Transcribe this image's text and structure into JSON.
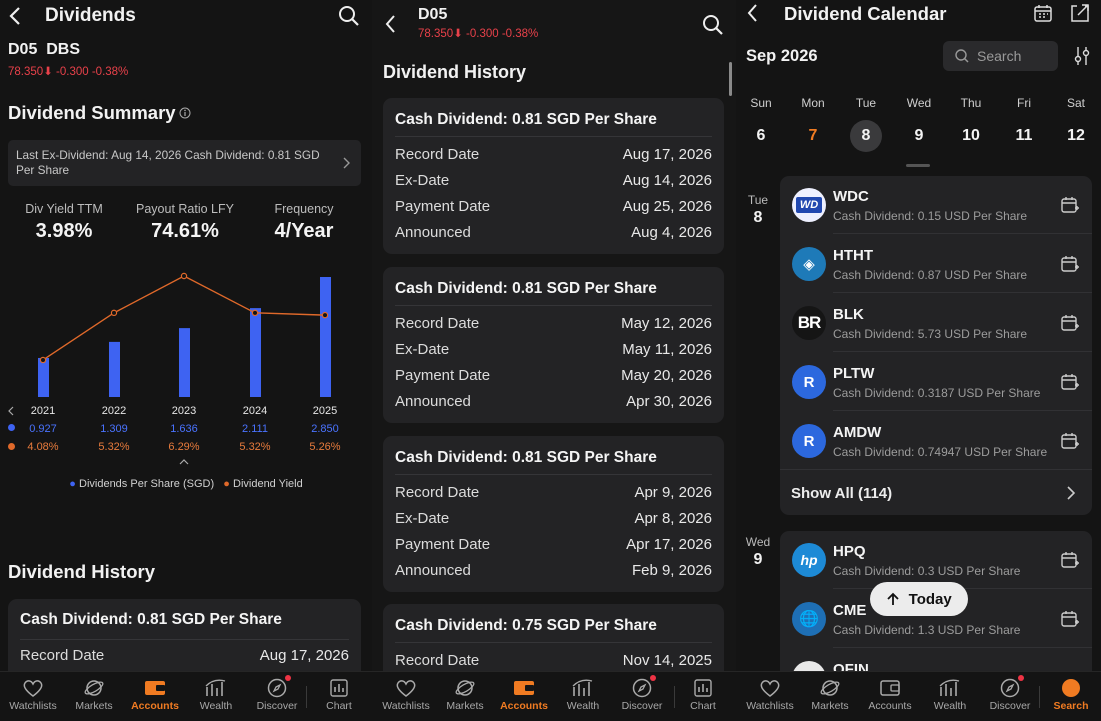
{
  "panel1": {
    "title": "Dividends",
    "stock": {
      "code": "D05",
      "name": "DBS",
      "price": "78.350",
      "change": "-0.300",
      "change_pct": "-0.38%"
    },
    "summary_title": "Dividend Summary",
    "last_ex_text": "Last Ex-Dividend: Aug 14, 2026 Cash Dividend: 0.81 SGD Per Share",
    "stats": [
      {
        "label": "Div Yield TTM",
        "value": "3.98%"
      },
      {
        "label": "Payout Ratio LFY",
        "value": "74.61%"
      },
      {
        "label": "Frequency",
        "value": "4/Year"
      }
    ],
    "legend": {
      "dps": "Dividends Per Share (SGD)",
      "yield": "Dividend Yield"
    },
    "history_title": "Dividend History",
    "history_card": {
      "title": "Cash Dividend: 0.81 SGD Per Share",
      "record_label": "Record Date",
      "record_value": "Aug 17, 2026"
    },
    "colors": {
      "bar": "#3e63f2",
      "line": "#e0692a",
      "red": "#e8414a",
      "accent": "#f07b22"
    }
  },
  "chart_data": {
    "type": "bar",
    "categories": [
      "2021",
      "2022",
      "2023",
      "2024",
      "2025"
    ],
    "series": [
      {
        "name": "Dividends Per Share (SGD)",
        "values": [
          0.927,
          1.309,
          1.636,
          2.111,
          2.85
        ],
        "labels": [
          "0.927",
          "1.309",
          "1.636",
          "2.111",
          "2.850"
        ]
      },
      {
        "name": "Dividend Yield",
        "type": "line",
        "values": [
          4.08,
          5.32,
          6.29,
          5.32,
          5.26
        ],
        "labels": [
          "4.08%",
          "5.32%",
          "6.29%",
          "5.32%",
          "5.26%"
        ]
      }
    ]
  },
  "panel2": {
    "stock": {
      "code": "D05",
      "price": "78.350",
      "change": "-0.300",
      "change_pct": "-0.38%"
    },
    "history_title": "Dividend History",
    "labels": {
      "record": "Record Date",
      "ex": "Ex-Date",
      "payment": "Payment Date",
      "announced": "Announced"
    },
    "cards": [
      {
        "title": "Cash Dividend: 0.81 SGD Per Share",
        "record": "Aug 17, 2026",
        "ex": "Aug 14, 2026",
        "payment": "Aug 25, 2026",
        "announced": "Aug 4, 2026"
      },
      {
        "title": "Cash Dividend: 0.81 SGD Per Share",
        "record": "May 12, 2026",
        "ex": "May 11, 2026",
        "payment": "May 20, 2026",
        "announced": "Apr 30, 2026"
      },
      {
        "title": "Cash Dividend: 0.81 SGD Per Share",
        "record": "Apr 9, 2026",
        "ex": "Apr 8, 2026",
        "payment": "Apr 17, 2026",
        "announced": "Feb 9, 2026"
      },
      {
        "title": "Cash Dividend: 0.75 SGD Per Share",
        "record": "Nov 14, 2025"
      }
    ]
  },
  "panel3": {
    "title": "Dividend Calendar",
    "month": "Sep 2026",
    "search_placeholder": "Search",
    "week": [
      {
        "name": "Sun",
        "date": "6"
      },
      {
        "name": "Mon",
        "date": "7"
      },
      {
        "name": "Tue",
        "date": "8"
      },
      {
        "name": "Wed",
        "date": "9"
      },
      {
        "name": "Thu",
        "date": "10"
      },
      {
        "name": "Fri",
        "date": "11"
      },
      {
        "name": "Sat",
        "date": "12"
      }
    ],
    "group1": {
      "dow": "Tue",
      "day": "8",
      "items": [
        {
          "ticker": "WDC",
          "desc": "Cash Dividend: 0.15 USD Per Share",
          "logo": "WD"
        },
        {
          "ticker": "HTHT",
          "desc": "Cash Dividend: 0.87 USD Per Share",
          "logo": "◈"
        },
        {
          "ticker": "BLK",
          "desc": "Cash Dividend: 5.73 USD Per Share",
          "logo": "BR"
        },
        {
          "ticker": "PLTW",
          "desc": "Cash Dividend: 0.3187 USD Per Share",
          "logo": "R"
        },
        {
          "ticker": "AMDW",
          "desc": "Cash Dividend: 0.74947 USD Per Share",
          "logo": "R"
        }
      ],
      "show_all": "Show All (114)"
    },
    "group2": {
      "dow": "Wed",
      "day": "9",
      "items": [
        {
          "ticker": "HPQ",
          "desc": "Cash Dividend: 0.3 USD Per Share",
          "logo": "hp"
        },
        {
          "ticker": "CME",
          "desc": "Cash Dividend: 1.3 USD Per Share",
          "logo": "🌐"
        },
        {
          "ticker": "OFIN"
        }
      ]
    },
    "today_button": "Today"
  },
  "tabbar": {
    "tabs": [
      "Watchlists",
      "Markets",
      "Accounts",
      "Wealth",
      "Discover",
      "Chart"
    ],
    "tabs3": [
      "Watchlists",
      "Markets",
      "Accounts",
      "Wealth",
      "Discover",
      "Search"
    ]
  }
}
